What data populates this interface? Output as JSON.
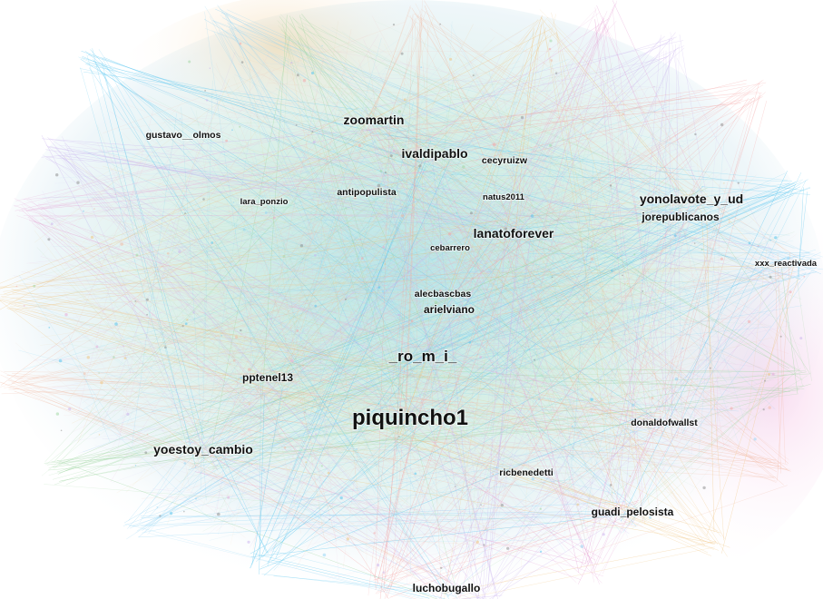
{
  "colors": {
    "background": "#ffffff",
    "label": "#111111",
    "edge_palette": [
      "#4fc3ef",
      "#8fd3f5",
      "#9ed6a0",
      "#f2b8a0",
      "#f0c27a",
      "#e7a6d6",
      "#c9b2ee",
      "#f5a3a3"
    ]
  },
  "nodes": [
    {
      "id": "piquincho1",
      "label": "piquincho1",
      "size": "xl"
    },
    {
      "id": "ro_m_i",
      "label": "_ro_m_i_",
      "size": "l"
    },
    {
      "id": "yonolavote_y_ud",
      "label": "yonolavote_y_ud",
      "size": "m"
    },
    {
      "id": "ivaldipablo",
      "label": "ivaldipablo",
      "size": "m"
    },
    {
      "id": "lanatoforever",
      "label": "lanatoforever",
      "size": "m"
    },
    {
      "id": "zoomartin",
      "label": "zoomartin",
      "size": "m"
    },
    {
      "id": "yoestoy_cambio",
      "label": "yoestoy_cambio",
      "size": "m"
    },
    {
      "id": "luchobugallo",
      "label": "luchobugallo",
      "size": "ms"
    },
    {
      "id": "guadi_pelosista",
      "label": "guadi_pelosista",
      "size": "ms"
    },
    {
      "id": "pptenel13",
      "label": "pptenel13",
      "size": "ms"
    },
    {
      "id": "arielviano",
      "label": "arielviano",
      "size": "ms"
    },
    {
      "id": "jorepublicanos",
      "label": "jorepublicanos",
      "size": "ms"
    },
    {
      "id": "alecbascbas",
      "label": "alecbascbas",
      "size": "s"
    },
    {
      "id": "ricbenedetti",
      "label": "ricbenedetti",
      "size": "s"
    },
    {
      "id": "donaldofwallst",
      "label": "donaldofwallst",
      "size": "s"
    },
    {
      "id": "antipopulista",
      "label": "antipopulista",
      "size": "s"
    },
    {
      "id": "cecyruizw",
      "label": "cecyruizw",
      "size": "s"
    },
    {
      "id": "gustavo__olmos",
      "label": "gustavo__olmos",
      "size": "s"
    },
    {
      "id": "lara_ponzio",
      "label": "lara_ponzio",
      "size": "xs"
    },
    {
      "id": "natus2011",
      "label": "natus2011",
      "size": "xs"
    },
    {
      "id": "cebarrero",
      "label": "cebarrero",
      "size": "xs"
    },
    {
      "id": "xxx_reactivada",
      "label": "xxx_reactivada",
      "size": "xs"
    }
  ]
}
